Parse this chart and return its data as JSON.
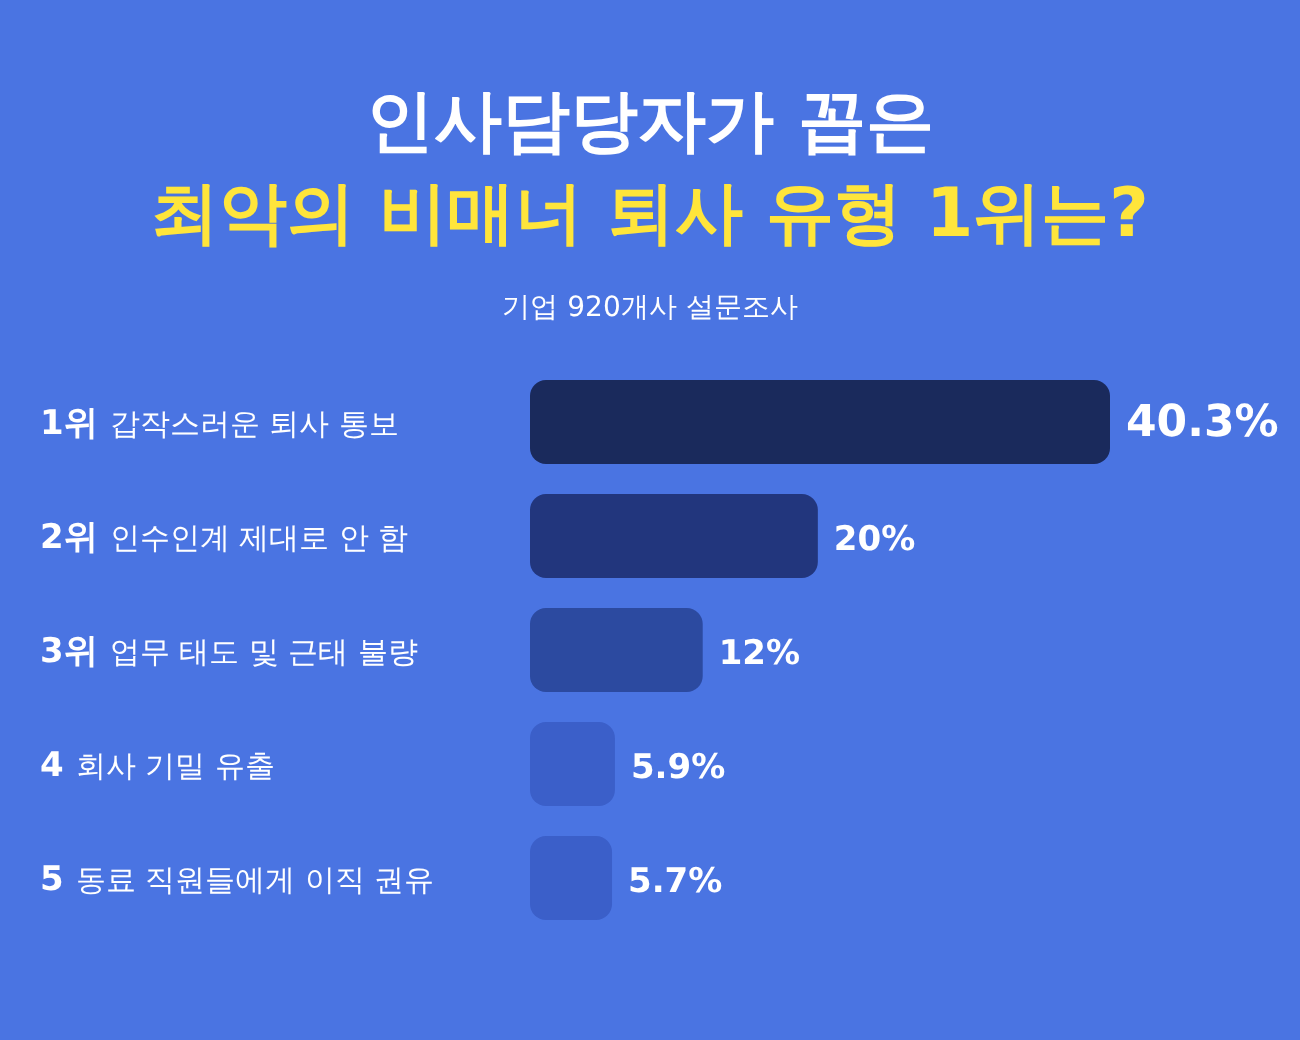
{
  "chart_data": {
    "type": "bar",
    "orientation": "horizontal",
    "title": "인사담당자가 꼽은\n최악의 비매너 퇴사 유형 1위는?",
    "subtitle": "기업 920개사 설문조사",
    "categories": [
      "1위 갑작스러운 퇴사 통보",
      "2위 인수인계 제대로 안 함",
      "3위 업무 태도 및 근태 불량",
      "4 회사 기밀 유출",
      "5 동료 직원들에게 이직 권유"
    ],
    "values": [
      40.3,
      20,
      12,
      5.9,
      5.7
    ],
    "colors": [
      "#1a2a5c",
      "#22367d",
      "#2c4aa0",
      "#3b5fc9",
      "#3b5fc9"
    ],
    "value_labels": [
      "40.3%",
      "20%",
      "12%",
      "5.9%",
      "5.7%"
    ]
  }
}
